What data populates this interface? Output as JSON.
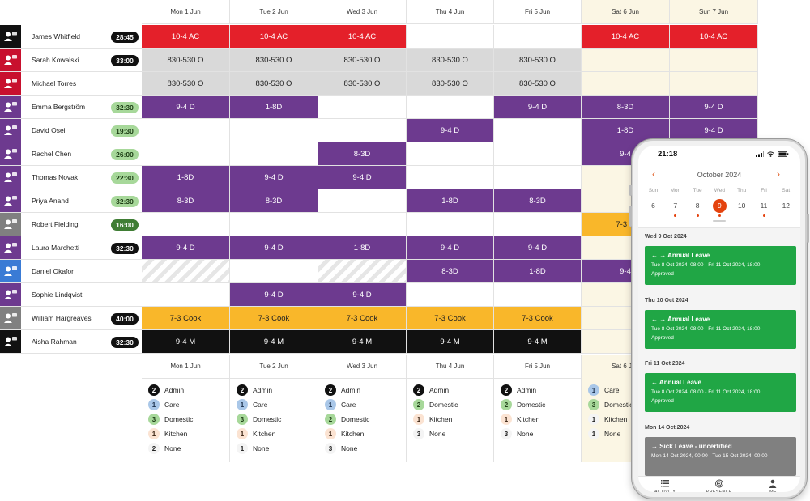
{
  "days": [
    "Mon 1 Jun",
    "Tue 2 Jun",
    "Wed 3 Jun",
    "Thu 4 Jun",
    "Fri 5 Jun",
    "Sat 6 Jun",
    "Sun 7 Jun"
  ],
  "colors": {
    "red": "#e4202a",
    "gray": "#d9d9d9",
    "purple": "#6d3a8f",
    "yellow": "#f9b72a",
    "black": "#111111",
    "weekend": "#fbf6e4",
    "accent": "#e4420d",
    "leave_green": "#20a645",
    "sick_gray": "#808080"
  },
  "employees": [
    {
      "name": "James Whitfield",
      "hours": "28:45",
      "hours_style": "black",
      "avatar_color": "#111111",
      "shifts": [
        {
          "label": "10-4 AC",
          "style": "red"
        },
        {
          "label": "10-4 AC",
          "style": "red"
        },
        {
          "label": "10-4 AC",
          "style": "red"
        },
        {
          "label": "",
          "style": ""
        },
        {
          "label": "",
          "style": ""
        },
        {
          "label": "10-4 AC",
          "style": "red"
        },
        {
          "label": "10-4 AC",
          "style": "red"
        }
      ]
    },
    {
      "name": "Sarah Kowalski",
      "hours": "33:00",
      "hours_style": "black",
      "avatar_color": "#c8102e",
      "shifts": [
        {
          "label": "830-530 O",
          "style": "gray"
        },
        {
          "label": "830-530 O",
          "style": "gray"
        },
        {
          "label": "830-530 O",
          "style": "gray"
        },
        {
          "label": "830-530 O",
          "style": "gray"
        },
        {
          "label": "830-530 O",
          "style": "gray"
        },
        {
          "label": "",
          "style": ""
        },
        {
          "label": "",
          "style": ""
        }
      ]
    },
    {
      "name": "Michael Torres",
      "hours": "",
      "hours_style": "",
      "avatar_color": "#c8102e",
      "shifts": [
        {
          "label": "830-530 O",
          "style": "gray"
        },
        {
          "label": "830-530 O",
          "style": "gray"
        },
        {
          "label": "830-530 O",
          "style": "gray"
        },
        {
          "label": "830-530 O",
          "style": "gray"
        },
        {
          "label": "830-530 O",
          "style": "gray"
        },
        {
          "label": "",
          "style": ""
        },
        {
          "label": "",
          "style": ""
        }
      ]
    },
    {
      "name": "Emma Bergström",
      "hours": "32:30",
      "hours_style": "green",
      "avatar_color": "#6d3a8f",
      "shifts": [
        {
          "label": "9-4 D",
          "style": "purple"
        },
        {
          "label": "1-8D",
          "style": "purple"
        },
        {
          "label": "",
          "style": ""
        },
        {
          "label": "",
          "style": ""
        },
        {
          "label": "9-4 D",
          "style": "purple"
        },
        {
          "label": "8-3D",
          "style": "purple"
        },
        {
          "label": "9-4 D",
          "style": "purple"
        }
      ]
    },
    {
      "name": "David Osei",
      "hours": "19:30",
      "hours_style": "green",
      "avatar_color": "#6d3a8f",
      "shifts": [
        {
          "label": "",
          "style": ""
        },
        {
          "label": "",
          "style": ""
        },
        {
          "label": "",
          "style": ""
        },
        {
          "label": "9-4 D",
          "style": "purple"
        },
        {
          "label": "",
          "style": ""
        },
        {
          "label": "1-8D",
          "style": "purple"
        },
        {
          "label": "9-4 D",
          "style": "purple"
        }
      ]
    },
    {
      "name": "Rachel Chen",
      "hours": "26:00",
      "hours_style": "green",
      "avatar_color": "#6d3a8f",
      "shifts": [
        {
          "label": "",
          "style": ""
        },
        {
          "label": "",
          "style": ""
        },
        {
          "label": "8-3D",
          "style": "purple"
        },
        {
          "label": "",
          "style": ""
        },
        {
          "label": "",
          "style": ""
        },
        {
          "label": "9-4",
          "style": "purple"
        },
        {
          "label": "",
          "style": ""
        }
      ]
    },
    {
      "name": "Thomas Novak",
      "hours": "22:30",
      "hours_style": "green",
      "avatar_color": "#6d3a8f",
      "shifts": [
        {
          "label": "1-8D",
          "style": "purple"
        },
        {
          "label": "9-4 D",
          "style": "purple"
        },
        {
          "label": "9-4 D",
          "style": "purple"
        },
        {
          "label": "",
          "style": ""
        },
        {
          "label": "",
          "style": ""
        },
        {
          "label": "",
          "style": ""
        },
        {
          "label": "",
          "style": ""
        }
      ]
    },
    {
      "name": "Priya Anand",
      "hours": "32:30",
      "hours_style": "green",
      "avatar_color": "#6d3a8f",
      "shifts": [
        {
          "label": "8-3D",
          "style": "purple"
        },
        {
          "label": "8-3D",
          "style": "purple"
        },
        {
          "label": "",
          "style": ""
        },
        {
          "label": "1-8D",
          "style": "purple"
        },
        {
          "label": "8-3D",
          "style": "purple"
        },
        {
          "label": "",
          "style": ""
        },
        {
          "label": "",
          "style": ""
        }
      ]
    },
    {
      "name": "Robert Fielding",
      "hours": "16:00",
      "hours_style": "dkgreen",
      "avatar_color": "#808080",
      "shifts": [
        {
          "label": "",
          "style": ""
        },
        {
          "label": "",
          "style": ""
        },
        {
          "label": "",
          "style": ""
        },
        {
          "label": "",
          "style": ""
        },
        {
          "label": "",
          "style": ""
        },
        {
          "label": "7-3 C",
          "style": "yellow"
        },
        {
          "label": "",
          "style": ""
        }
      ]
    },
    {
      "name": "Laura Marchetti",
      "hours": "32:30",
      "hours_style": "black",
      "avatar_color": "#6d3a8f",
      "shifts": [
        {
          "label": "9-4 D",
          "style": "purple"
        },
        {
          "label": "9-4 D",
          "style": "purple"
        },
        {
          "label": "1-8D",
          "style": "purple"
        },
        {
          "label": "9-4 D",
          "style": "purple"
        },
        {
          "label": "9-4 D",
          "style": "purple"
        },
        {
          "label": "",
          "style": ""
        },
        {
          "label": "",
          "style": ""
        }
      ]
    },
    {
      "name": "Daniel Okafor",
      "hours": "",
      "hours_style": "",
      "avatar_color": "#3a7bd5",
      "shifts": [
        {
          "label": "",
          "style": "stripe"
        },
        {
          "label": "",
          "style": ""
        },
        {
          "label": "",
          "style": "stripe"
        },
        {
          "label": "8-3D",
          "style": "purple"
        },
        {
          "label": "1-8D",
          "style": "purple"
        },
        {
          "label": "9-4",
          "style": "purple"
        },
        {
          "label": "",
          "style": ""
        }
      ]
    },
    {
      "name": "Sophie Lindqvist",
      "hours": "",
      "hours_style": "",
      "avatar_color": "#6d3a8f",
      "shifts": [
        {
          "label": "",
          "style": ""
        },
        {
          "label": "9-4 D",
          "style": "purple"
        },
        {
          "label": "9-4 D",
          "style": "purple"
        },
        {
          "label": "",
          "style": ""
        },
        {
          "label": "",
          "style": ""
        },
        {
          "label": "",
          "style": ""
        },
        {
          "label": "",
          "style": ""
        }
      ]
    },
    {
      "name": "William Hargreaves",
      "hours": "40:00",
      "hours_style": "black",
      "avatar_color": "#808080",
      "shifts": [
        {
          "label": "7-3 Cook",
          "style": "yellow"
        },
        {
          "label": "7-3 Cook",
          "style": "yellow"
        },
        {
          "label": "7-3 Cook",
          "style": "yellow"
        },
        {
          "label": "7-3 Cook",
          "style": "yellow"
        },
        {
          "label": "7-3 Cook",
          "style": "yellow"
        },
        {
          "label": "",
          "style": ""
        },
        {
          "label": "",
          "style": ""
        }
      ]
    },
    {
      "name": "Aisha Rahman",
      "hours": "32:30",
      "hours_style": "black",
      "avatar_color": "#111111",
      "shifts": [
        {
          "label": "9-4 M",
          "style": "black"
        },
        {
          "label": "9-4 M",
          "style": "black"
        },
        {
          "label": "9-4 M",
          "style": "black"
        },
        {
          "label": "9-4 M",
          "style": "black"
        },
        {
          "label": "9-4 M",
          "style": "black"
        },
        {
          "label": "",
          "style": ""
        },
        {
          "label": "",
          "style": ""
        }
      ]
    }
  ],
  "summaries": [
    [
      {
        "count": "2",
        "role": "Admin",
        "color": "black"
      },
      {
        "count": "1",
        "role": "Care",
        "color": "blue"
      },
      {
        "count": "3",
        "role": "Domestic",
        "color": "green"
      },
      {
        "count": "1",
        "role": "Kitchen",
        "color": "peach"
      },
      {
        "count": "2",
        "role": "None",
        "color": "white"
      }
    ],
    [
      {
        "count": "2",
        "role": "Admin",
        "color": "black"
      },
      {
        "count": "1",
        "role": "Care",
        "color": "blue"
      },
      {
        "count": "3",
        "role": "Domestic",
        "color": "green"
      },
      {
        "count": "1",
        "role": "Kitchen",
        "color": "peach"
      },
      {
        "count": "1",
        "role": "None",
        "color": "white"
      }
    ],
    [
      {
        "count": "2",
        "role": "Admin",
        "color": "black"
      },
      {
        "count": "1",
        "role": "Care",
        "color": "blue"
      },
      {
        "count": "2",
        "role": "Domestic",
        "color": "green"
      },
      {
        "count": "1",
        "role": "Kitchen",
        "color": "peach"
      },
      {
        "count": "3",
        "role": "None",
        "color": "white"
      }
    ],
    [
      {
        "count": "2",
        "role": "Admin",
        "color": "black"
      },
      {
        "count": "2",
        "role": "Domestic",
        "color": "green"
      },
      {
        "count": "1",
        "role": "Kitchen",
        "color": "peach"
      },
      {
        "count": "3",
        "role": "None",
        "color": "white"
      }
    ],
    [
      {
        "count": "2",
        "role": "Admin",
        "color": "black"
      },
      {
        "count": "2",
        "role": "Domestic",
        "color": "green"
      },
      {
        "count": "1",
        "role": "Kitchen",
        "color": "peach"
      },
      {
        "count": "3",
        "role": "None",
        "color": "white"
      }
    ],
    [
      {
        "count": "1",
        "role": "Care",
        "color": "blue"
      },
      {
        "count": "3",
        "role": "Domestic",
        "color": "green"
      },
      {
        "count": "1",
        "role": "Kitchen",
        "color": "white"
      },
      {
        "count": "1",
        "role": "None",
        "color": "white"
      }
    ]
  ],
  "phone": {
    "time": "21:18",
    "month": "October 2024",
    "weekdays": [
      "Sun",
      "Mon",
      "Tue",
      "Wed",
      "Thu",
      "Fri",
      "Sat"
    ],
    "dates": [
      "6",
      "7",
      "8",
      "9",
      "10",
      "11",
      "12"
    ],
    "selected_index": 3,
    "dot_indexes": [
      1,
      2,
      3,
      5
    ],
    "days": [
      {
        "label": "Wed 9 Oct 2024",
        "event": {
          "title": "← → Annual Leave",
          "range": "Tue 8 Oct 2024, 08:00 - Fri 11 Oct 2024, 18:00",
          "status": "Approved",
          "style": "green"
        }
      },
      {
        "label": "Thu 10 Oct 2024",
        "event": {
          "title": "← → Annual Leave",
          "range": "Tue 8 Oct 2024, 08:00 - Fri 11 Oct 2024, 18:00",
          "status": "Approved",
          "style": "green"
        }
      },
      {
        "label": "Fri 11 Oct 2024",
        "event": {
          "title": "← Annual Leave",
          "range": "Tue 8 Oct 2024, 08:00 - Fri 11 Oct 2024, 18:00",
          "status": "Approved",
          "style": "green"
        }
      },
      {
        "label": "Mon 14 Oct 2024",
        "event": {
          "title": "→ Sick Leave - uncertified",
          "range": "Mon 14 Oct 2024, 00:00 - Tue 15 Oct 2024, 00:00",
          "status": "",
          "style": "gray"
        }
      }
    ],
    "nav": [
      {
        "label": "ACTIVITY",
        "icon": "list-icon"
      },
      {
        "label": "PRESENCE",
        "icon": "presence-icon"
      },
      {
        "label": "ME",
        "icon": "person-icon"
      }
    ]
  }
}
